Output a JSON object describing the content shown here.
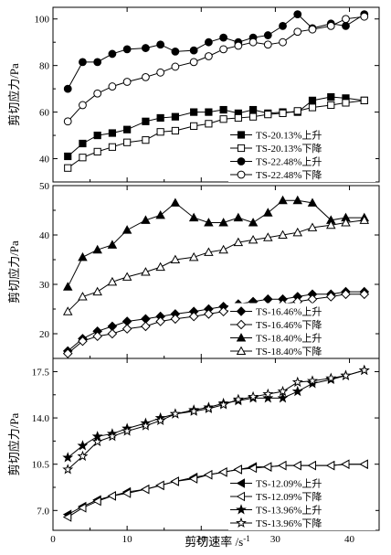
{
  "figure": {
    "xlabel": "剪切速率 /s",
    "xlabel_sup": "-1",
    "ylabel": "剪切应力/Pa"
  },
  "chart_data": [
    {
      "type": "line",
      "xlim": [
        0,
        44
      ],
      "ylim": [
        30,
        105
      ],
      "yticks": [
        40,
        60,
        80,
        100
      ],
      "xticks": [
        0,
        10,
        20,
        30,
        40
      ],
      "show_x_tick_labels": false,
      "ylabel": "剪切应力/Pa",
      "legend_position": "lower-right",
      "series": [
        {
          "name": "TS-20.13%上升",
          "marker": "square",
          "fill": "filled",
          "x": [
            2,
            4,
            6,
            8,
            10,
            12.5,
            14.5,
            16.5,
            19,
            21,
            23,
            25,
            27,
            29,
            31,
            33,
            35,
            37.5,
            39.5,
            42
          ],
          "y": [
            41,
            46.5,
            50,
            51,
            52.5,
            56,
            57.5,
            58,
            60,
            60,
            61,
            59.5,
            61,
            59.5,
            60,
            60,
            65,
            66.5,
            66,
            65
          ]
        },
        {
          "name": "TS-20.13%下降",
          "marker": "square",
          "fill": "open",
          "x": [
            2,
            4,
            6,
            8,
            10,
            12.5,
            14.5,
            16.5,
            19,
            21,
            23,
            25,
            27,
            29,
            31,
            33,
            35,
            37.5,
            39.5,
            42
          ],
          "y": [
            36,
            40.5,
            43,
            45,
            47,
            48,
            51.5,
            52,
            54,
            55,
            57,
            57.5,
            58,
            59,
            59.5,
            60.5,
            62,
            63,
            64,
            65
          ]
        },
        {
          "name": "TS-22.48%上升",
          "marker": "circle",
          "fill": "filled",
          "x": [
            2,
            4,
            6,
            8,
            10,
            12.5,
            14.5,
            16.5,
            19,
            21,
            23,
            25,
            27,
            29,
            31,
            33,
            35,
            37.5,
            39.5,
            42
          ],
          "y": [
            70,
            81.5,
            81.5,
            85,
            87,
            87.5,
            89,
            86,
            86.5,
            90,
            92,
            90,
            92,
            93,
            97,
            102,
            96,
            98,
            97,
            102
          ]
        },
        {
          "name": "TS-22.48%下降",
          "marker": "circle",
          "fill": "open",
          "x": [
            2,
            4,
            6,
            8,
            10,
            12.5,
            14.5,
            16.5,
            19,
            21,
            23,
            25,
            27,
            29,
            31,
            33,
            35,
            37.5,
            39.5,
            42
          ],
          "y": [
            56,
            63,
            68,
            71,
            73,
            75,
            77,
            79.5,
            81.5,
            84,
            87,
            88.5,
            90,
            89,
            90,
            94.5,
            95.5,
            97,
            100,
            101
          ]
        }
      ]
    },
    {
      "type": "line",
      "xlim": [
        0,
        44
      ],
      "ylim": [
        15,
        50
      ],
      "yticks": [
        20,
        30,
        40,
        50
      ],
      "xticks": [
        0,
        10,
        20,
        30,
        40
      ],
      "show_x_tick_labels": false,
      "ylabel": "剪切应力/Pa",
      "legend_position": "lower-right",
      "series": [
        {
          "name": "TS-16.46%上升",
          "marker": "diamond",
          "fill": "filled",
          "x": [
            2,
            4,
            6,
            8,
            10,
            12.5,
            14.5,
            16.5,
            19,
            21,
            23,
            25,
            27,
            29,
            31,
            33,
            35,
            37.5,
            39.5,
            42
          ],
          "y": [
            16.5,
            19,
            20.5,
            21.5,
            22.5,
            23,
            23.5,
            24,
            24.5,
            25,
            25.5,
            26,
            26.5,
            27,
            27,
            27.5,
            28,
            28,
            28.5,
            28.5
          ]
        },
        {
          "name": "TS-16.46%下降",
          "marker": "diamond",
          "fill": "open",
          "x": [
            2,
            4,
            6,
            8,
            10,
            12.5,
            14.5,
            16.5,
            19,
            21,
            23,
            25,
            27,
            29,
            31,
            33,
            35,
            37.5,
            39.5,
            42
          ],
          "y": [
            16,
            18.5,
            19.5,
            20,
            21,
            21.5,
            22.5,
            23,
            23.5,
            24,
            24.5,
            25,
            25,
            25.5,
            26,
            26.5,
            27,
            27.5,
            28,
            28
          ]
        },
        {
          "name": "TS-18.40%上升",
          "marker": "triangle",
          "fill": "filled",
          "x": [
            2,
            4,
            6,
            8,
            10,
            12.5,
            14.5,
            16.5,
            19,
            21,
            23,
            25,
            27,
            29,
            31,
            33,
            35,
            37.5,
            39.5,
            42
          ],
          "y": [
            29.5,
            35.5,
            37,
            38,
            41,
            43,
            44,
            46.5,
            43.5,
            42.5,
            42.5,
            43.5,
            42.5,
            44.5,
            47,
            47,
            46.5,
            43,
            43.5,
            43.5
          ]
        },
        {
          "name": "TS-18.40%下降",
          "marker": "triangle",
          "fill": "open",
          "x": [
            2,
            4,
            6,
            8,
            10,
            12.5,
            14.5,
            16.5,
            19,
            21,
            23,
            25,
            27,
            29,
            31,
            33,
            35,
            37.5,
            39.5,
            42
          ],
          "y": [
            24.5,
            27.5,
            28.5,
            30.5,
            31.5,
            32.5,
            33.5,
            35,
            35.5,
            36.5,
            37,
            38.5,
            39,
            39.5,
            40,
            40.5,
            41.5,
            42,
            42.5,
            43
          ]
        }
      ]
    },
    {
      "type": "line",
      "xlim": [
        0,
        44
      ],
      "ylim": [
        5.5,
        18.5
      ],
      "yticks": [
        7.0,
        10.5,
        14.0,
        17.5
      ],
      "ytick_labels": [
        "7.0",
        "10.5",
        "14.0",
        "17.5"
      ],
      "xticks": [
        0,
        10,
        20,
        30,
        40
      ],
      "show_x_tick_labels": true,
      "ylabel": "剪切应力/Pa",
      "legend_position": "lower-right",
      "series": [
        {
          "name": "TS-12.09%上升",
          "marker": "left-triangle",
          "fill": "filled",
          "x": [
            2,
            4,
            6,
            8,
            10,
            12.5,
            14.5,
            16.5,
            19,
            21,
            23,
            25,
            27,
            29,
            31,
            33,
            35,
            37.5,
            39.5,
            42
          ],
          "y": [
            6.7,
            7.3,
            7.8,
            8.1,
            8.4,
            8.6,
            8.9,
            9.2,
            9.5,
            9.7,
            9.9,
            10.1,
            10.3,
            10.3,
            10.4,
            10.4,
            10.4,
            10.4,
            10.5,
            10.5
          ]
        },
        {
          "name": "TS-12.09%下降",
          "marker": "left-triangle",
          "fill": "open",
          "x": [
            2,
            4,
            6,
            8,
            10,
            12.5,
            14.5,
            16.5,
            19,
            21,
            23,
            25,
            27,
            29,
            31,
            33,
            35,
            37.5,
            39.5,
            42
          ],
          "y": [
            6.5,
            7.2,
            7.7,
            8.1,
            8.3,
            8.6,
            8.9,
            9.2,
            9.4,
            9.7,
            9.9,
            10.1,
            10.2,
            10.3,
            10.4,
            10.4,
            10.4,
            10.4,
            10.5,
            10.5
          ]
        },
        {
          "name": "TS-13.96%上升",
          "marker": "star",
          "fill": "filled",
          "x": [
            2,
            4,
            6,
            8,
            10,
            12.5,
            14.5,
            16.5,
            19,
            21,
            23,
            25,
            27,
            29,
            31,
            33,
            35,
            37.5,
            39.5,
            42
          ],
          "y": [
            11,
            11.9,
            12.6,
            12.8,
            13.2,
            13.6,
            14.0,
            14.3,
            14.6,
            14.8,
            15.1,
            15.3,
            15.5,
            15.5,
            15.5,
            16,
            16.6,
            16.9,
            17.2,
            17.6
          ]
        },
        {
          "name": "TS-13.96%下降",
          "marker": "star",
          "fill": "open",
          "x": [
            2,
            4,
            6,
            8,
            10,
            12.5,
            14.5,
            16.5,
            19,
            21,
            23,
            25,
            27,
            29,
            31,
            33,
            35,
            37.5,
            39.5,
            42
          ],
          "y": [
            10.1,
            11.1,
            12.2,
            12.6,
            13.0,
            13.4,
            13.8,
            14.3,
            14.5,
            14.7,
            15.0,
            15.4,
            15.6,
            15.8,
            16.0,
            16.7,
            16.8,
            17.0,
            17.2,
            17.6
          ]
        }
      ]
    }
  ]
}
